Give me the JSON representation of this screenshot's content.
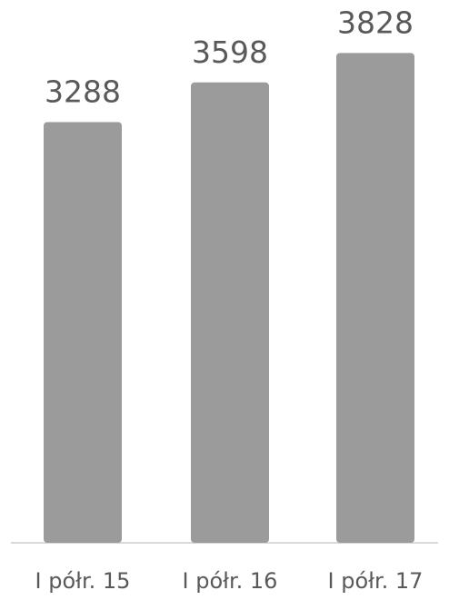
{
  "chart_data": {
    "type": "bar",
    "categories": [
      "I półr. 15",
      "I półr. 16",
      "I półr. 17"
    ],
    "values": [
      3288,
      3598,
      3828
    ],
    "data_labels": [
      "3288",
      "3598",
      "3828"
    ],
    "ylim": [
      0,
      4100
    ],
    "grid": false,
    "legend": "none",
    "bar_color": "#9b9b9b"
  }
}
